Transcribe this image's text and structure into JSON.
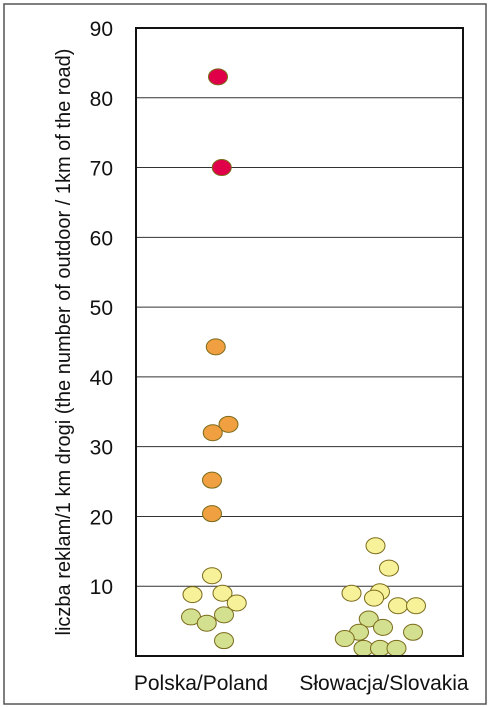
{
  "chart_data": {
    "type": "scatter",
    "title": "",
    "xlabel": "",
    "ylabel": "liczba reklam/1 km drogi (the number of outdoor / 1km of the road)",
    "ylim": [
      0,
      90
    ],
    "yticks": [
      10,
      20,
      30,
      40,
      50,
      60,
      70,
      80,
      90
    ],
    "categories": [
      "Polska/Poland",
      "Słowacja/Slovakia"
    ],
    "grid": "horizontal",
    "legend": "none",
    "colors": {
      "high": "#e0004a",
      "mid": "#f0a040",
      "low_yellow": "#f7f29a",
      "low_green": "#d2e090",
      "stroke": "#7a6a1a"
    },
    "series": [
      {
        "category": "Polska/Poland",
        "points": [
          {
            "offset": 0.0,
            "y": 83.0,
            "color": "high"
          },
          {
            "offset": 0.05,
            "y": 70.0,
            "color": "high"
          },
          {
            "offset": -0.03,
            "y": 44.3,
            "color": "mid"
          },
          {
            "offset": 0.14,
            "y": 33.2,
            "color": "mid"
          },
          {
            "offset": -0.07,
            "y": 32.0,
            "color": "mid"
          },
          {
            "offset": -0.08,
            "y": 25.2,
            "color": "mid"
          },
          {
            "offset": -0.08,
            "y": 20.4,
            "color": "mid"
          },
          {
            "offset": -0.08,
            "y": 11.5,
            "color": "low_yellow"
          },
          {
            "offset": -0.34,
            "y": 8.8,
            "color": "low_yellow"
          },
          {
            "offset": 0.06,
            "y": 9.0,
            "color": "low_yellow"
          },
          {
            "offset": 0.25,
            "y": 7.6,
            "color": "low_yellow"
          },
          {
            "offset": 0.08,
            "y": 5.9,
            "color": "low_green"
          },
          {
            "offset": -0.36,
            "y": 5.6,
            "color": "low_green"
          },
          {
            "offset": -0.15,
            "y": 4.7,
            "color": "low_green"
          },
          {
            "offset": 0.08,
            "y": 2.2,
            "color": "low_green"
          }
        ]
      },
      {
        "category": "Słowacja/Slovakia",
        "points": [
          {
            "offset": -0.06,
            "y": 15.8,
            "color": "low_yellow"
          },
          {
            "offset": 0.12,
            "y": 12.6,
            "color": "low_yellow"
          },
          {
            "offset": -0.38,
            "y": 9.0,
            "color": "low_yellow"
          },
          {
            "offset": 0.0,
            "y": 9.2,
            "color": "low_yellow"
          },
          {
            "offset": -0.08,
            "y": 8.3,
            "color": "low_yellow"
          },
          {
            "offset": 0.24,
            "y": 7.2,
            "color": "low_yellow"
          },
          {
            "offset": 0.48,
            "y": 7.2,
            "color": "low_yellow"
          },
          {
            "offset": -0.15,
            "y": 5.3,
            "color": "low_green"
          },
          {
            "offset": 0.04,
            "y": 4.1,
            "color": "low_green"
          },
          {
            "offset": -0.28,
            "y": 3.4,
            "color": "low_green"
          },
          {
            "offset": 0.44,
            "y": 3.4,
            "color": "low_green"
          },
          {
            "offset": -0.47,
            "y": 2.5,
            "color": "low_green"
          },
          {
            "offset": -0.22,
            "y": 1.1,
            "color": "low_green"
          },
          {
            "offset": 0.0,
            "y": 1.1,
            "color": "low_green"
          },
          {
            "offset": 0.22,
            "y": 1.1,
            "color": "low_green"
          }
        ]
      }
    ]
  }
}
